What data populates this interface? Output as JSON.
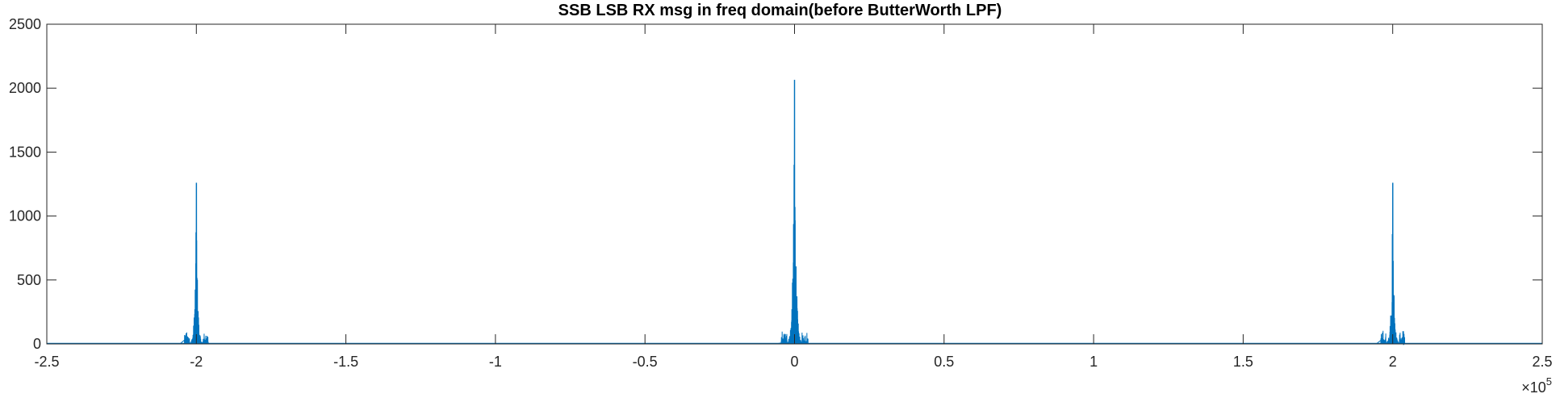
{
  "chart_data": {
    "type": "line",
    "title": "SSB LSB RX msg in freq domain(before ButterWorth LPF)",
    "xlabel": "",
    "ylabel": "",
    "xlim": [
      -250000,
      250000
    ],
    "ylim": [
      0,
      2500
    ],
    "x_tick_values": [
      -250000,
      -200000,
      -150000,
      -100000,
      -50000,
      0,
      50000,
      100000,
      150000,
      200000,
      250000
    ],
    "x_tick_labels": [
      "-2.5",
      "-2",
      "-1.5",
      "-1",
      "-0.5",
      "0",
      "0.5",
      "1",
      "1.5",
      "2",
      "2.5"
    ],
    "x_exponent_label": "×10",
    "x_exponent_power": "5",
    "y_tick_values": [
      0,
      500,
      1000,
      1500,
      2000,
      2500
    ],
    "y_tick_labels": [
      "0",
      "500",
      "1000",
      "1500",
      "2000",
      "2500"
    ],
    "grid": false,
    "line_color": "#0072BD",
    "peaks": [
      {
        "center": -200000,
        "max": 1260,
        "halfwidth": 4000
      },
      {
        "center": 0,
        "max": 2065,
        "halfwidth": 4500
      },
      {
        "center": 200000,
        "max": 1260,
        "halfwidth": 4000
      }
    ]
  }
}
